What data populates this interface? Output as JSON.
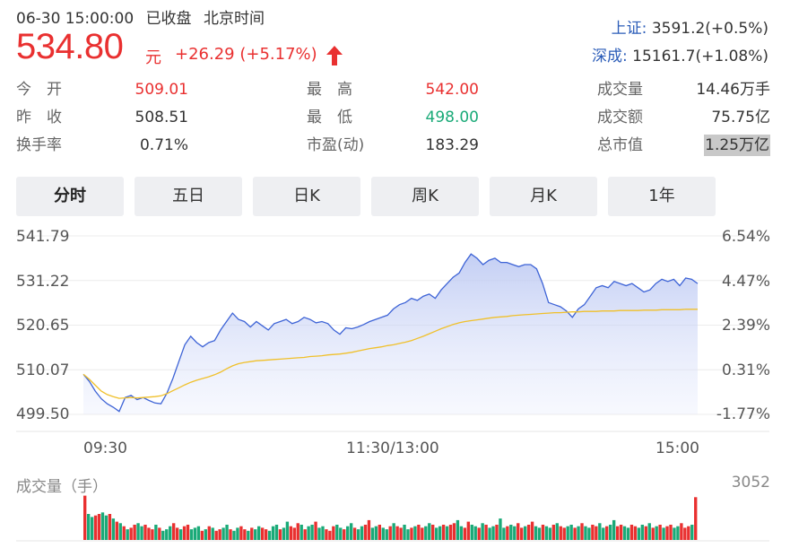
{
  "header": {
    "date_time": "06-30 15:00:00",
    "status": "已收盘",
    "timezone": "北京时间"
  },
  "quote": {
    "price": "534.80",
    "unit": "元",
    "change": "+26.29 (+5.17%)",
    "direction": "up",
    "color_up": "#e93030",
    "color_down": "#1aaa78"
  },
  "indices": [
    {
      "name": "上证:",
      "value": "3591.2(+0.5%)"
    },
    {
      "name": "深成:",
      "value": "15161.7(+1.08%)"
    }
  ],
  "stats": [
    {
      "label": "今　开",
      "value": "509.01",
      "tone": "red"
    },
    {
      "label": "最　高",
      "value": "542.00",
      "tone": "red"
    },
    {
      "label": "成交量",
      "value": "14.46万手",
      "tone": "normal"
    },
    {
      "label": "昨　收",
      "value": "508.51",
      "tone": "normal"
    },
    {
      "label": "最　低",
      "value": "498.00",
      "tone": "green"
    },
    {
      "label": "成交额",
      "value": "75.75亿",
      "tone": "normal"
    },
    {
      "label": "换手率",
      "value": "0.71%",
      "tone": "normal"
    },
    {
      "label": "市盈(动)",
      "value": "183.29",
      "tone": "normal"
    },
    {
      "label": "总市值",
      "value": "1.25万亿",
      "tone": "highlight"
    }
  ],
  "tabs": [
    {
      "label": "分时",
      "active": true
    },
    {
      "label": "五日",
      "active": false
    },
    {
      "label": "日K",
      "active": false
    },
    {
      "label": "周K",
      "active": false
    },
    {
      "label": "月K",
      "active": false
    },
    {
      "label": "1年",
      "active": false
    }
  ],
  "chart_data": {
    "type": "line",
    "y_left_ticks": [
      "541.79",
      "531.22",
      "520.65",
      "510.07",
      "499.50"
    ],
    "y_right_ticks": [
      "6.54%",
      "4.47%",
      "2.39%",
      "0.31%",
      "-1.77%"
    ],
    "x_ticks": [
      "09:30",
      "11:30/13:00",
      "15:00"
    ],
    "ylim": [
      499.5,
      541.79
    ],
    "prev_close": 508.51,
    "series": [
      {
        "color": "#3d63d6",
        "values": [
          509.0,
          507.3,
          505.0,
          503.2,
          502.0,
          501.2,
          500.2,
          503.5,
          504.0,
          503.0,
          503.5,
          502.8,
          502.2,
          502.0,
          504.5,
          508.0,
          512.0,
          516.0,
          518.0,
          516.5,
          515.5,
          516.5,
          517.0,
          519.5,
          521.5,
          523.5,
          522.0,
          521.5,
          520.2,
          521.5,
          520.5,
          519.5,
          521.0,
          521.5,
          522.0,
          521.0,
          521.5,
          522.5,
          522.0,
          521.2,
          521.5,
          521.0,
          519.5,
          518.5,
          520.0,
          519.8,
          520.2,
          520.8,
          521.5,
          522.0,
          522.5,
          523.0,
          524.5,
          525.5,
          526.0,
          527.0,
          526.5,
          527.5,
          528.0,
          527.0,
          529.0,
          530.5,
          532.0,
          533.0,
          535.5,
          537.5,
          536.5,
          535.0,
          536.0,
          536.5,
          535.5,
          535.5,
          535.0,
          534.5,
          535.0,
          535.0,
          534.0,
          530.5,
          526.0,
          525.5,
          525.0,
          524.0,
          522.5,
          524.5,
          525.5,
          527.5,
          529.5,
          530.0,
          529.5,
          531.0,
          530.5,
          530.0,
          530.5,
          529.5,
          528.5,
          529.0,
          530.5,
          531.5,
          531.0,
          531.5,
          530.0,
          531.8,
          531.5,
          530.5
        ]
      },
      {
        "color": "#f0c02a",
        "values": [
          509.0,
          507.8,
          506.4,
          505.0,
          504.2,
          503.7,
          503.3,
          503.4,
          503.5,
          503.4,
          503.5,
          503.6,
          503.7,
          503.9,
          504.4,
          505.1,
          505.8,
          506.5,
          507.1,
          507.6,
          508.0,
          508.4,
          508.9,
          509.5,
          510.3,
          511.0,
          511.5,
          511.8,
          512.0,
          512.2,
          512.3,
          512.4,
          512.5,
          512.6,
          512.7,
          512.8,
          512.9,
          513.0,
          513.2,
          513.3,
          513.4,
          513.6,
          513.7,
          513.8,
          514.0,
          514.2,
          514.5,
          514.8,
          515.1,
          515.3,
          515.5,
          515.8,
          516.0,
          516.3,
          516.6,
          517.0,
          517.5,
          518.0,
          518.6,
          519.2,
          519.8,
          520.3,
          520.8,
          521.2,
          521.5,
          521.7,
          521.9,
          522.1,
          522.3,
          522.5,
          522.6,
          522.7,
          522.9,
          523.0,
          523.1,
          523.2,
          523.3,
          523.4,
          523.5,
          523.6,
          523.6,
          523.7,
          523.8,
          523.8,
          523.9,
          523.9,
          523.9,
          524.0,
          524.0,
          524.0,
          524.1,
          524.1,
          524.1,
          524.1,
          524.2,
          524.2,
          524.2,
          524.3,
          524.3,
          524.3,
          524.3,
          524.4,
          524.4,
          524.4
        ]
      }
    ],
    "volume": {
      "title": "成交量（手）",
      "max_label": "3052",
      "max": 3052,
      "up_color": "#e93030",
      "down_color": "#1aaa78",
      "bars": [
        2900,
        1700,
        1500,
        1600,
        1700,
        1800,
        1600,
        1700,
        1400,
        1200,
        1100,
        900,
        700,
        800,
        1000,
        1100,
        900,
        1000,
        800,
        700,
        1000,
        800,
        600,
        700,
        900,
        1100,
        800,
        700,
        900,
        1000,
        700,
        800,
        900,
        600,
        700,
        900,
        800,
        600,
        700,
        800,
        1000,
        700,
        600,
        800,
        900,
        700,
        600,
        800,
        700,
        900,
        800,
        700,
        600,
        900,
        1000,
        700,
        800,
        1200,
        900,
        800,
        1100,
        1000,
        700,
        900,
        1000,
        1200,
        800,
        900,
        700,
        600,
        900,
        1000,
        800,
        700,
        900,
        1100,
        800,
        700,
        900,
        1000,
        1300,
        800,
        900,
        1000,
        800,
        700,
        900,
        1100,
        900,
        800,
        1000,
        700,
        800,
        900,
        1000,
        800,
        900,
        1100,
        1000,
        800,
        900,
        1000,
        900,
        1000,
        1100,
        1300,
        900,
        800,
        1200,
        1000,
        900,
        800,
        1100,
        1000,
        800,
        900,
        1000,
        1400,
        800,
        900,
        1000,
        900,
        1100,
        800,
        900,
        1000,
        1200,
        900,
        800,
        1000,
        900,
        800,
        1000,
        1100,
        900,
        800,
        900,
        1000,
        800,
        900,
        1100,
        900,
        800,
        1000,
        900,
        1100,
        800,
        900,
        1000,
        1300,
        900,
        1000,
        900,
        800,
        1000,
        900,
        800,
        1000,
        900,
        1100,
        800,
        900,
        1000,
        800,
        900,
        1000,
        800,
        900,
        1100,
        800,
        900,
        1000,
        2800
      ],
      "directions": "udduuddudududuudduuududdduuduudddududuuddudduududduudddudduuududdudduuudduddudduuddudduduudduduuddudduduudduuddududduddudduuduuddudduduuddududduudduddu"
    }
  }
}
